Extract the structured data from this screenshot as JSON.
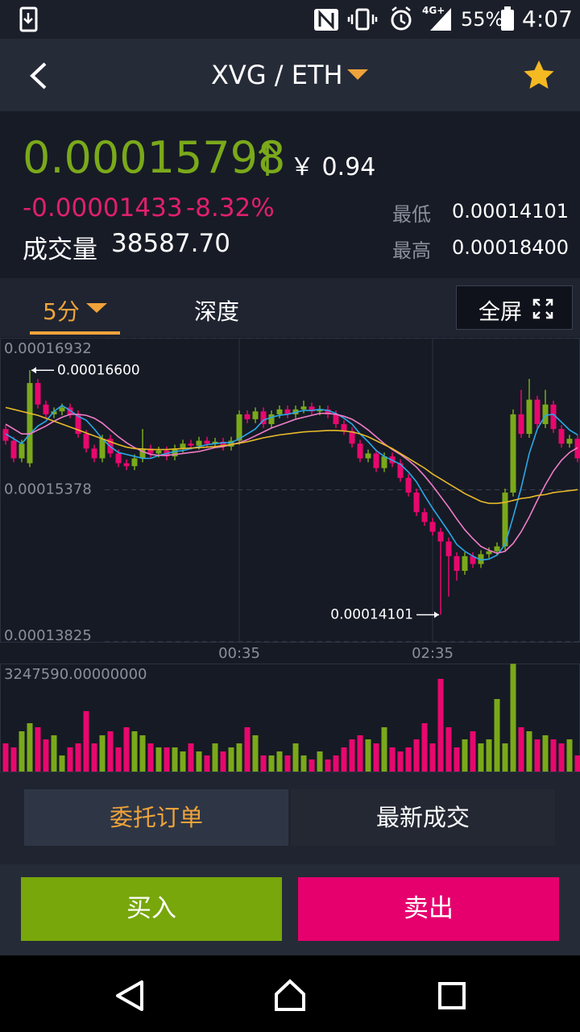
{
  "status_bar": {
    "network": "4G+",
    "battery": "55%",
    "time": "4:07"
  },
  "header": {
    "title": "XVG / ETH"
  },
  "ticker": {
    "price": "0.00015798",
    "rmb_price": "￥ 0.94",
    "change": "-0.00001433",
    "change_pct": "-8.32%",
    "volume_label": "成交量",
    "volume_value": "38587.70",
    "low_label": "最低",
    "low_value": "0.00014101",
    "high_label": "最高",
    "high_value": "0.00018400"
  },
  "tabs": {
    "interval": "5分",
    "depth": "深度",
    "fullscreen": "全屏"
  },
  "chart_data": {
    "type": "candlestick",
    "up_color": "#7aa91a",
    "down_color": "#e8086e",
    "categories": [
      null,
      null,
      null,
      null,
      null,
      null,
      null,
      null,
      null,
      null,
      null,
      null,
      null,
      null,
      null,
      null,
      null,
      null,
      null,
      null,
      null,
      null,
      null,
      null,
      null,
      null,
      null,
      null,
      null,
      "00:35",
      null,
      null,
      null,
      null,
      null,
      null,
      null,
      null,
      null,
      null,
      null,
      null,
      null,
      null,
      null,
      null,
      null,
      null,
      null,
      null,
      null,
      null,
      null,
      "02:35",
      null,
      null,
      null,
      null,
      null,
      null,
      null,
      null,
      null,
      null,
      null,
      null,
      null,
      null,
      null,
      null,
      null,
      null
    ],
    "ylim": [
      0.00013825,
      0.00016932
    ],
    "yticks": [
      0.00016932,
      0.00015378,
      0.00013825
    ],
    "open": [
      0.00016,
      0.0001588,
      0.000157,
      0.0001565,
      0.0001647,
      0.0001625,
      0.0001615,
      0.0001618,
      0.0001622,
      0.0001615,
      0.0001595,
      0.000158,
      0.000157,
      0.000159,
      0.0001575,
      0.0001565,
      0.0001562,
      0.000157,
      0.000158,
      0.0001575,
      0.0001578,
      0.0001572,
      0.000158,
      0.0001585,
      0.0001583,
      0.0001588,
      0.0001585,
      0.0001587,
      0.0001582,
      0.0001588,
      0.0001615,
      0.000161,
      0.0001618,
      0.0001605,
      0.0001615,
      0.000162,
      0.0001615,
      0.000162,
      0.0001623,
      0.0001618,
      0.000162,
      0.0001615,
      0.0001605,
      0.0001598,
      0.0001585,
      0.000157,
      0.0001575,
      0.000156,
      0.0001572,
      0.0001565,
      0.000155,
      0.0001535,
      0.0001515,
      0.0001505,
      0.0001495,
      0.0001485,
      0.000147,
      0.0001455,
      0.000147,
      0.0001462,
      0.0001472,
      0.0001475,
      0.000148,
      0.0001535,
      0.0001615,
      0.0001595,
      0.000163,
      0.0001605,
      0.0001625,
      0.00016,
      0.0001585,
      0.000159
    ],
    "high": [
      0.0001604,
      0.0001592,
      0.0001589,
      0.000166,
      0.0001651,
      0.0001629,
      0.0001622,
      0.0001626,
      0.0001626,
      0.0001619,
      0.0001599,
      0.0001584,
      0.0001594,
      0.0001594,
      0.0001579,
      0.0001569,
      0.0001574,
      0.00016,
      0.0001584,
      0.0001582,
      0.0001582,
      0.0001584,
      0.0001589,
      0.0001589,
      0.0001592,
      0.0001592,
      0.0001591,
      0.0001591,
      0.0001592,
      0.0001619,
      0.0001619,
      0.0001622,
      0.0001622,
      0.0001619,
      0.0001624,
      0.0001624,
      0.0001624,
      0.0001629,
      0.0001627,
      0.0001624,
      0.0001624,
      0.0001619,
      0.0001609,
      0.0001602,
      0.0001589,
      0.0001579,
      0.0001579,
      0.0001576,
      0.0001576,
      0.0001569,
      0.0001554,
      0.0001539,
      0.0001519,
      0.0001509,
      0.0001499,
      0.0001489,
      0.0001474,
      0.0001474,
      0.0001474,
      0.0001476,
      0.0001479,
      0.0001484,
      0.0001539,
      0.000162,
      0.000164,
      0.00016512,
      0.0001634,
      0.000164,
      0.0001629,
      0.0001604,
      0.0001594,
      0.0001594
    ],
    "low": [
      0.0001584,
      0.0001566,
      0.0001566,
      0.0001561,
      0.0001621,
      0.0001611,
      0.0001611,
      0.0001614,
      0.0001611,
      0.0001591,
      0.0001576,
      0.0001566,
      0.0001566,
      0.0001571,
      0.0001561,
      0.0001558,
      0.0001558,
      0.0001566,
      0.0001571,
      0.0001571,
      0.0001568,
      0.0001568,
      0.0001576,
      0.0001579,
      0.0001579,
      0.0001581,
      0.0001581,
      0.0001578,
      0.0001578,
      0.0001584,
      0.0001606,
      0.0001606,
      0.0001601,
      0.0001601,
      0.0001611,
      0.0001611,
      0.0001611,
      0.0001616,
      0.0001614,
      0.0001614,
      0.0001611,
      0.0001601,
      0.0001594,
      0.0001581,
      0.0001566,
      0.0001566,
      0.0001556,
      0.0001556,
      0.0001561,
      0.0001546,
      0.0001531,
      0.0001511,
      0.0001501,
      0.0001491,
      0.00014101,
      0.00014287,
      0.0001445,
      0.0001451,
      0.0001458,
      0.0001458,
      0.0001468,
      0.0001471,
      0.0001476,
      0.0001531,
      0.0001591,
      0.0001591,
      0.0001601,
      0.0001601,
      0.0001596,
      0.0001581,
      0.0001581,
      0.0001566
    ],
    "close": [
      0.0001588,
      0.000157,
      0.0001585,
      0.0001647,
      0.0001625,
      0.0001615,
      0.0001618,
      0.0001622,
      0.0001615,
      0.0001595,
      0.000158,
      0.000157,
      0.000159,
      0.0001575,
      0.0001565,
      0.0001562,
      0.000157,
      0.000158,
      0.0001575,
      0.0001578,
      0.0001572,
      0.000158,
      0.0001585,
      0.0001583,
      0.0001588,
      0.0001585,
      0.0001587,
      0.0001582,
      0.0001588,
      0.0001615,
      0.000161,
      0.0001618,
      0.0001605,
      0.0001615,
      0.000162,
      0.0001615,
      0.000162,
      0.0001623,
      0.0001618,
      0.000162,
      0.0001615,
      0.0001605,
      0.0001598,
      0.0001585,
      0.000157,
      0.0001575,
      0.000156,
      0.0001572,
      0.0001565,
      0.000155,
      0.0001535,
      0.0001515,
      0.0001505,
      0.0001495,
      0.0001485,
      0.000147,
      0.0001455,
      0.000147,
      0.0001462,
      0.0001472,
      0.0001475,
      0.000148,
      0.0001535,
      0.0001615,
      0.0001595,
      0.000163,
      0.0001605,
      0.0001625,
      0.00016,
      0.0001585,
      0.000159,
      0.000157
    ],
    "ma_lines": [
      {
        "color": "#2aa8e8",
        "values": [
          0.0001595,
          0.000159,
          0.0001585,
          0.0001595,
          0.0001603,
          0.0001608,
          0.0001618,
          0.0001624,
          0.0001619,
          0.0001613,
          0.0001609,
          0.00016,
          0.000159,
          0.0001582,
          0.0001576,
          0.0001574,
          0.0001572,
          0.000157,
          0.000157,
          0.0001573,
          0.0001575,
          0.0001577,
          0.0001578,
          0.000158,
          0.0001582,
          0.0001584,
          0.0001585,
          0.0001586,
          0.0001586,
          0.000159,
          0.0001595,
          0.00016,
          0.0001609,
          0.0001612,
          0.0001614,
          0.0001615,
          0.0001617,
          0.0001619,
          0.0001619,
          0.000162,
          0.0001619,
          0.0001616,
          0.0001611,
          0.0001605,
          0.0001595,
          0.0001587,
          0.0001578,
          0.0001572,
          0.0001568,
          0.0001564,
          0.0001556,
          0.0001546,
          0.0001532,
          0.0001519,
          0.0001507,
          0.0001495,
          0.0001482,
          0.0001475,
          0.000147,
          0.0001466,
          0.0001467,
          0.0001471,
          0.0001482,
          0.000151,
          0.000154,
          0.0001575,
          0.00016,
          0.0001614,
          0.0001615,
          0.0001607,
          0.0001599,
          0.0001594
        ]
      },
      {
        "color": "#f07ec8",
        "values": [
          0.0001605,
          0.00016,
          0.0001595,
          0.0001595,
          0.0001599,
          0.0001603,
          0.0001608,
          0.0001612,
          0.0001615,
          0.0001615,
          0.0001614,
          0.0001611,
          0.0001606,
          0.0001599,
          0.0001592,
          0.0001586,
          0.0001581,
          0.0001577,
          0.0001574,
          0.0001573,
          0.0001573,
          0.0001574,
          0.0001575,
          0.0001576,
          0.0001577,
          0.0001579,
          0.0001581,
          0.0001582,
          0.0001584,
          0.0001586,
          0.0001589,
          0.0001593,
          0.0001597,
          0.0001601,
          0.0001604,
          0.0001607,
          0.000161,
          0.0001612,
          0.0001614,
          0.0001616,
          0.0001616,
          0.0001615,
          0.0001613,
          0.000161,
          0.0001605,
          0.0001599,
          0.0001592,
          0.0001585,
          0.0001579,
          0.0001574,
          0.0001568,
          0.0001561,
          0.0001552,
          0.0001542,
          0.0001531,
          0.000152,
          0.0001508,
          0.0001497,
          0.0001488,
          0.000148,
          0.0001476,
          0.0001473,
          0.0001475,
          0.0001483,
          0.0001495,
          0.000151,
          0.0001527,
          0.0001543,
          0.0001557,
          0.0001568,
          0.0001576,
          0.0001581
        ]
      },
      {
        "color": "#e8b92a",
        "values": [
          0.0001622,
          0.000162,
          0.0001618,
          0.0001616,
          0.0001614,
          0.0001611,
          0.0001608,
          0.0001605,
          0.0001602,
          0.0001599,
          0.0001596,
          0.0001593,
          0.000159,
          0.0001587,
          0.0001584,
          0.00015815,
          0.000158,
          0.00015795,
          0.0001579,
          0.0001579,
          0.0001579,
          0.00015795,
          0.000158,
          0.00015805,
          0.0001581,
          0.00015815,
          0.0001582,
          0.0001583,
          0.0001584,
          0.00015855,
          0.0001587,
          0.0001589,
          0.0001591,
          0.00015925,
          0.0001594,
          0.0001595,
          0.0001596,
          0.0001597,
          0.00015975,
          0.0001598,
          0.00015985,
          0.00015985,
          0.0001598,
          0.0001597,
          0.0001595,
          0.0001592,
          0.0001588,
          0.0001584,
          0.000158,
          0.0001575,
          0.000157,
          0.0001565,
          0.000156,
          0.0001554,
          0.0001549,
          0.0001544,
          0.0001539,
          0.0001534,
          0.000153,
          0.0001526,
          0.0001524,
          0.0001524,
          0.0001525,
          0.0001527,
          0.0001529,
          0.000153,
          0.0001532,
          0.0001533,
          0.0001535,
          0.0001536,
          0.0001537,
          0.0001538
        ]
      }
    ],
    "annotations": [
      {
        "value": 0.000166,
        "label": "0.00016600"
      },
      {
        "value": 0.00014101,
        "label": "0.00014101"
      }
    ],
    "volume": {
      "ylim": [
        0,
        3247590
      ],
      "yticks": [
        {
          "value": 3247590,
          "label": "3247590.00000000"
        }
      ],
      "values": [
        848000,
        727000,
        1212000,
        1454000,
        1333000,
        969000,
        1091000,
        485000,
        727000,
        848000,
        1818000,
        848000,
        1091000,
        1212000,
        727000,
        1333000,
        1212000,
        1091000,
        848000,
        727000,
        727000,
        727000,
        606000,
        848000,
        606000,
        485000,
        848000,
        606000,
        727000,
        848000,
        1333000,
        1091000,
        485000,
        485000,
        606000,
        485000,
        848000,
        485000,
        364000,
        606000,
        364000,
        485000,
        727000,
        969000,
        1091000,
        969000,
        848000,
        1333000,
        727000,
        606000,
        727000,
        969000,
        1454000,
        848000,
        2787000,
        1333000,
        727000,
        969000,
        1212000,
        848000,
        969000,
        2181000,
        848000,
        3240000,
        1333000,
        1212000,
        969000,
        1091000,
        969000,
        848000,
        969000,
        485000
      ]
    }
  },
  "order_tabs": {
    "orders": "委托订单",
    "trades": "最新成交"
  },
  "actions": {
    "buy": "买入",
    "sell": "卖出"
  }
}
